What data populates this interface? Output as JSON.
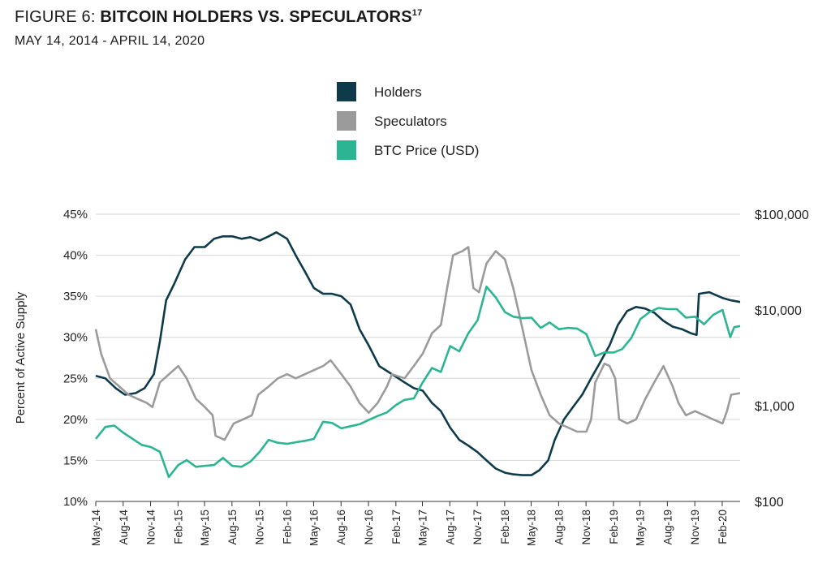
{
  "header": {
    "figure_label": "FIGURE 6:",
    "title": "BITCOIN HOLDERS VS. SPECULATORS",
    "footnote": "17",
    "date_range": "MAY 14, 2014 -  APRIL 14, 2020"
  },
  "chart_data": {
    "type": "line",
    "legend": [
      "Holders",
      "Speculators",
      "BTC Price (USD)"
    ],
    "legend_placement": "top-center",
    "grid": "horizontal",
    "ylabel_left": "Percent of Active Supply",
    "ylim_left": [
      10,
      45
    ],
    "yticks_left": [
      "10%",
      "15%",
      "20%",
      "25%",
      "30%",
      "35%",
      "40%",
      "45%"
    ],
    "ylim_right": [
      100,
      100000
    ],
    "yscale_right": "log",
    "yticks_right": [
      "$100",
      "$1,000",
      "$10,000",
      "$100,000"
    ],
    "xlim": [
      "2014-05-14",
      "2020-04-14"
    ],
    "xticks": [
      "May-14",
      "Aug-14",
      "Nov-14",
      "Feb-15",
      "May-15",
      "Aug-15",
      "Nov-15",
      "Feb-16",
      "May-16",
      "Aug-16",
      "Nov-16",
      "Feb-17",
      "May-17",
      "Aug-17",
      "Nov-17",
      "Feb-18",
      "May-18",
      "Aug-18",
      "Nov-18",
      "Feb-19",
      "May-19",
      "Aug-19",
      "Nov-19",
      "Feb-20"
    ],
    "series": [
      {
        "name": "Holders",
        "axis": "left",
        "color": "#0e3a4a",
        "points": [
          [
            "2014-05-14",
            25.3
          ],
          [
            "2014-06-15",
            25.0
          ],
          [
            "2014-07-20",
            23.8
          ],
          [
            "2014-08-20",
            23.0
          ],
          [
            "2014-09-25",
            23.2
          ],
          [
            "2014-10-25",
            23.8
          ],
          [
            "2014-11-25",
            25.5
          ],
          [
            "2014-12-15",
            29.5
          ],
          [
            "2015-01-05",
            34.5
          ],
          [
            "2015-02-01",
            36.5
          ],
          [
            "2015-03-10",
            39.5
          ],
          [
            "2015-04-10",
            41.0
          ],
          [
            "2015-05-15",
            41.0
          ],
          [
            "2015-06-15",
            42.0
          ],
          [
            "2015-07-15",
            42.3
          ],
          [
            "2015-08-15",
            42.3
          ],
          [
            "2015-09-15",
            42.0
          ],
          [
            "2015-10-15",
            42.2
          ],
          [
            "2015-11-15",
            41.8
          ],
          [
            "2015-12-15",
            42.3
          ],
          [
            "2016-01-10",
            42.8
          ],
          [
            "2016-02-15",
            42.0
          ],
          [
            "2016-03-15",
            40.0
          ],
          [
            "2016-04-15",
            38.0
          ],
          [
            "2016-05-15",
            36.0
          ],
          [
            "2016-06-15",
            35.3
          ],
          [
            "2016-07-15",
            35.3
          ],
          [
            "2016-08-15",
            35.0
          ],
          [
            "2016-09-15",
            34.0
          ],
          [
            "2016-10-15",
            31.0
          ],
          [
            "2016-11-15",
            29.0
          ],
          [
            "2016-12-20",
            26.5
          ],
          [
            "2017-02-01",
            25.5
          ],
          [
            "2017-03-15",
            24.5
          ],
          [
            "2017-04-15",
            23.8
          ],
          [
            "2017-05-15",
            23.5
          ],
          [
            "2017-06-15",
            22.0
          ],
          [
            "2017-07-15",
            21.0
          ],
          [
            "2017-08-15",
            19.0
          ],
          [
            "2017-09-15",
            17.5
          ],
          [
            "2017-10-15",
            16.8
          ],
          [
            "2017-11-15",
            16.0
          ],
          [
            "2017-12-15",
            15.0
          ],
          [
            "2018-01-15",
            14.0
          ],
          [
            "2018-02-15",
            13.5
          ],
          [
            "2018-03-15",
            13.3
          ],
          [
            "2018-04-15",
            13.2
          ],
          [
            "2018-05-15",
            13.2
          ],
          [
            "2018-06-10",
            13.8
          ],
          [
            "2018-07-10",
            15.0
          ],
          [
            "2018-08-01",
            17.5
          ],
          [
            "2018-09-01",
            20.0
          ],
          [
            "2018-10-01",
            21.5
          ],
          [
            "2018-11-01",
            23.0
          ],
          [
            "2018-12-01",
            25.0
          ],
          [
            "2019-01-01",
            27.0
          ],
          [
            "2019-02-01",
            29.0
          ],
          [
            "2019-03-01",
            31.5
          ],
          [
            "2019-04-01",
            33.2
          ],
          [
            "2019-05-01",
            33.7
          ],
          [
            "2019-06-01",
            33.5
          ],
          [
            "2019-07-01",
            33.0
          ],
          [
            "2019-08-01",
            32.0
          ],
          [
            "2019-09-01",
            31.3
          ],
          [
            "2019-10-01",
            31.0
          ],
          [
            "2019-11-01",
            30.5
          ],
          [
            "2019-11-20",
            30.3
          ],
          [
            "2019-11-28",
            35.3
          ],
          [
            "2020-01-01",
            35.5
          ],
          [
            "2020-02-15",
            34.8
          ],
          [
            "2020-03-15",
            34.5
          ],
          [
            "2020-04-14",
            34.3
          ]
        ]
      },
      {
        "name": "Speculators",
        "axis": "left",
        "color": "#9b9b9b",
        "points": [
          [
            "2014-05-14",
            31.0
          ],
          [
            "2014-06-01",
            28.0
          ],
          [
            "2014-07-01",
            25.0
          ],
          [
            "2014-08-01",
            24.0
          ],
          [
            "2014-09-01",
            23.0
          ],
          [
            "2014-10-01",
            22.5
          ],
          [
            "2014-11-01",
            22.0
          ],
          [
            "2014-11-20",
            21.5
          ],
          [
            "2014-12-15",
            24.5
          ],
          [
            "2015-01-15",
            25.5
          ],
          [
            "2015-02-15",
            26.5
          ],
          [
            "2015-03-15",
            25.0
          ],
          [
            "2015-04-15",
            22.5
          ],
          [
            "2015-05-15",
            21.5
          ],
          [
            "2015-06-10",
            20.5
          ],
          [
            "2015-06-20",
            18.0
          ],
          [
            "2015-07-20",
            17.5
          ],
          [
            "2015-08-20",
            19.5
          ],
          [
            "2015-09-20",
            20.0
          ],
          [
            "2015-10-20",
            20.5
          ],
          [
            "2015-11-10",
            23.0
          ],
          [
            "2015-12-15",
            24.0
          ],
          [
            "2016-01-15",
            25.0
          ],
          [
            "2016-02-15",
            25.5
          ],
          [
            "2016-03-15",
            25.0
          ],
          [
            "2016-04-15",
            25.5
          ],
          [
            "2016-05-15",
            26.0
          ],
          [
            "2016-06-15",
            26.5
          ],
          [
            "2016-07-10",
            27.2
          ],
          [
            "2016-08-15",
            25.5
          ],
          [
            "2016-09-15",
            24.0
          ],
          [
            "2016-10-15",
            22.0
          ],
          [
            "2016-11-15",
            20.8
          ],
          [
            "2016-12-15",
            22.0
          ],
          [
            "2017-01-15",
            24.0
          ],
          [
            "2017-02-01",
            25.5
          ],
          [
            "2017-03-15",
            25.0
          ],
          [
            "2017-04-15",
            26.5
          ],
          [
            "2017-05-15",
            28.0
          ],
          [
            "2017-06-15",
            30.5
          ],
          [
            "2017-07-15",
            31.5
          ],
          [
            "2017-08-05",
            36.0
          ],
          [
            "2017-08-25",
            40.0
          ],
          [
            "2017-09-25",
            40.5
          ],
          [
            "2017-10-15",
            41.0
          ],
          [
            "2017-11-01",
            36.0
          ],
          [
            "2017-11-20",
            35.5
          ],
          [
            "2017-12-15",
            39.0
          ],
          [
            "2018-01-15",
            40.5
          ],
          [
            "2018-02-15",
            39.5
          ],
          [
            "2018-03-15",
            36.0
          ],
          [
            "2018-04-15",
            31.0
          ],
          [
            "2018-05-15",
            26.0
          ],
          [
            "2018-06-15",
            23.0
          ],
          [
            "2018-07-15",
            20.5
          ],
          [
            "2018-08-15",
            19.5
          ],
          [
            "2018-09-15",
            19.0
          ],
          [
            "2018-10-15",
            18.5
          ],
          [
            "2018-11-15",
            18.5
          ],
          [
            "2018-12-01",
            20.0
          ],
          [
            "2018-12-15",
            24.5
          ],
          [
            "2019-01-15",
            26.8
          ],
          [
            "2019-02-01",
            26.5
          ],
          [
            "2019-02-20",
            25.0
          ],
          [
            "2019-03-05",
            20.0
          ],
          [
            "2019-04-01",
            19.5
          ],
          [
            "2019-05-01",
            20.0
          ],
          [
            "2019-06-01",
            22.5
          ],
          [
            "2019-07-01",
            24.5
          ],
          [
            "2019-08-01",
            26.5
          ],
          [
            "2019-09-01",
            24.0
          ],
          [
            "2019-09-20",
            22.0
          ],
          [
            "2019-10-15",
            20.5
          ],
          [
            "2019-11-15",
            21.0
          ],
          [
            "2019-12-15",
            20.5
          ],
          [
            "2020-01-15",
            20.0
          ],
          [
            "2020-02-15",
            19.5
          ],
          [
            "2020-03-01",
            21.0
          ],
          [
            "2020-03-15",
            23.0
          ],
          [
            "2020-04-14",
            23.2
          ]
        ]
      },
      {
        "name": "BTC Price (USD)",
        "axis": "right",
        "color": "#2bb593",
        "points": [
          [
            "2014-05-14",
            450
          ],
          [
            "2014-06-15",
            600
          ],
          [
            "2014-07-15",
            620
          ],
          [
            "2014-08-15",
            520
          ],
          [
            "2014-09-15",
            450
          ],
          [
            "2014-10-15",
            390
          ],
          [
            "2014-11-15",
            370
          ],
          [
            "2014-12-15",
            330
          ],
          [
            "2015-01-14",
            180
          ],
          [
            "2015-02-15",
            240
          ],
          [
            "2015-03-15",
            270
          ],
          [
            "2015-04-15",
            230
          ],
          [
            "2015-05-15",
            235
          ],
          [
            "2015-06-15",
            240
          ],
          [
            "2015-07-15",
            285
          ],
          [
            "2015-08-15",
            235
          ],
          [
            "2015-09-15",
            230
          ],
          [
            "2015-10-15",
            260
          ],
          [
            "2015-11-15",
            330
          ],
          [
            "2015-12-15",
            440
          ],
          [
            "2016-01-15",
            410
          ],
          [
            "2016-02-15",
            400
          ],
          [
            "2016-03-15",
            415
          ],
          [
            "2016-04-15",
            430
          ],
          [
            "2016-05-15",
            450
          ],
          [
            "2016-06-15",
            680
          ],
          [
            "2016-07-15",
            660
          ],
          [
            "2016-08-15",
            580
          ],
          [
            "2016-09-15",
            610
          ],
          [
            "2016-10-15",
            640
          ],
          [
            "2016-11-15",
            710
          ],
          [
            "2016-12-15",
            780
          ],
          [
            "2017-01-15",
            850
          ],
          [
            "2017-02-15",
            1020
          ],
          [
            "2017-03-15",
            1150
          ],
          [
            "2017-04-15",
            1190
          ],
          [
            "2017-05-15",
            1750
          ],
          [
            "2017-06-15",
            2480
          ],
          [
            "2017-07-15",
            2250
          ],
          [
            "2017-08-15",
            4200
          ],
          [
            "2017-09-15",
            3700
          ],
          [
            "2017-10-15",
            5700
          ],
          [
            "2017-11-15",
            7800
          ],
          [
            "2017-12-15",
            17500
          ],
          [
            "2018-01-15",
            13500
          ],
          [
            "2018-02-15",
            9500
          ],
          [
            "2018-03-15",
            8500
          ],
          [
            "2018-04-15",
            8200
          ],
          [
            "2018-05-15",
            8300
          ],
          [
            "2018-06-15",
            6500
          ],
          [
            "2018-07-15",
            7400
          ],
          [
            "2018-08-15",
            6300
          ],
          [
            "2018-09-15",
            6500
          ],
          [
            "2018-10-15",
            6400
          ],
          [
            "2018-11-15",
            5600
          ],
          [
            "2018-12-15",
            3300
          ],
          [
            "2019-01-15",
            3600
          ],
          [
            "2019-02-15",
            3600
          ],
          [
            "2019-03-15",
            3900
          ],
          [
            "2019-04-15",
            5100
          ],
          [
            "2019-05-15",
            8000
          ],
          [
            "2019-06-15",
            9500
          ],
          [
            "2019-07-15",
            10500
          ],
          [
            "2019-08-15",
            10200
          ],
          [
            "2019-09-15",
            10200
          ],
          [
            "2019-10-15",
            8300
          ],
          [
            "2019-11-15",
            8500
          ],
          [
            "2019-12-15",
            7100
          ],
          [
            "2020-01-15",
            8900
          ],
          [
            "2020-02-15",
            10000
          ],
          [
            "2020-03-12",
            5200
          ],
          [
            "2020-03-25",
            6600
          ],
          [
            "2020-04-14",
            6800
          ]
        ]
      }
    ]
  }
}
